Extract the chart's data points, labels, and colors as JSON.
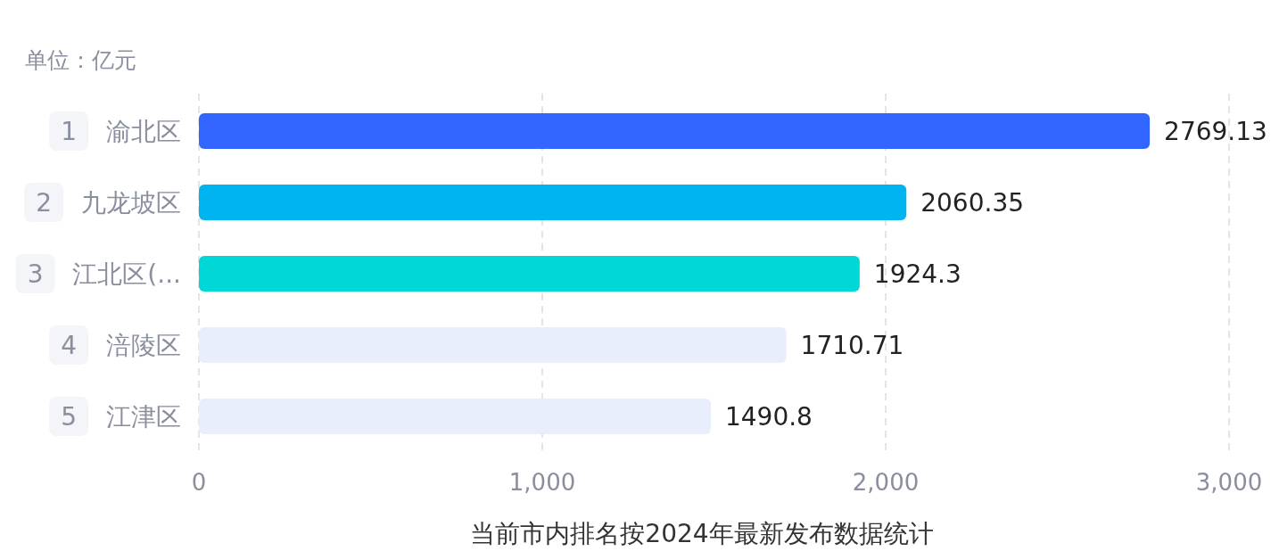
{
  "chart_data": {
    "type": "bar",
    "orientation": "horizontal",
    "title": "单位：亿元",
    "categories": [
      "1 渝北区",
      "2 九龙坡区",
      "3 江北区(...",
      "4 涪陵区",
      "5 江津区"
    ],
    "values": [
      2769.13,
      2060.35,
      1924.3,
      1710.71,
      1490.8
    ],
    "colors": [
      "#3366ff",
      "#00b4f0",
      "#00d8d8",
      "#e8eefc",
      "#e8eefc"
    ],
    "data_labels": true,
    "xlim": [
      0,
      3000
    ],
    "xticks": [
      0,
      {
        "value": 1000,
        "label": "1,000"
      },
      {
        "value": 2000,
        "label": "2,000"
      },
      {
        "value": 3000,
        "label": "3,000"
      }
    ],
    "grid": "x",
    "annotations": [
      "当前市内排名按2024年最新发布数据统计"
    ]
  }
}
